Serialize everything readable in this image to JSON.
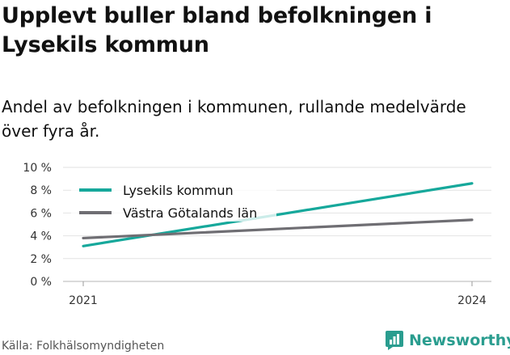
{
  "title": "Upplevt buller bland befolkningen i Lysekils kommun",
  "subtitle": "Andel av befolkningen i kommunen, rullande medelvärde över fyra år.",
  "source": "Källa: Folkhälsomyndigheten",
  "brand": {
    "name": "Newsworthy",
    "icon": "newsworthy-logo-icon",
    "color": "#2a9d8f"
  },
  "chart_data": {
    "type": "line",
    "x": [
      "2021",
      "2024"
    ],
    "ylim": [
      0,
      10
    ],
    "yticks": [
      "0 %",
      "2 %",
      "4 %",
      "6 %",
      "8 %",
      "10 %"
    ],
    "grid": true,
    "legend": "top-left",
    "series": [
      {
        "name": "Lysekils kommun",
        "color": "#16a89b",
        "values": [
          3.1,
          8.6
        ]
      },
      {
        "name": "Västra Götalands län",
        "color": "#6f6e73",
        "values": [
          3.8,
          5.4
        ]
      }
    ]
  }
}
